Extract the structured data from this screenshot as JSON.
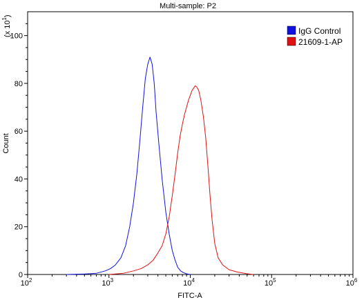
{
  "chart_data": {
    "type": "line",
    "title": "Multi-sample: P2",
    "xlabel": "FITC-A",
    "ylabel": "Count",
    "y_multiplier_label": "(x 10",
    "y_multiplier_exponent": "1",
    "x_scale": "log",
    "xlim": [
      100,
      1000000
    ],
    "ylim": [
      0,
      110
    ],
    "x_ticks": [
      {
        "base": "10",
        "exp": "2",
        "value": 100
      },
      {
        "base": "10",
        "exp": "3",
        "value": 1000
      },
      {
        "base": "10",
        "exp": "4",
        "value": 10000
      },
      {
        "base": "10",
        "exp": "5",
        "value": 100000
      },
      {
        "base": "10",
        "exp": "6",
        "value": 1000000
      }
    ],
    "y_ticks": [
      {
        "label": "0",
        "value": 0
      },
      {
        "label": "20",
        "value": 20
      },
      {
        "label": "40",
        "value": 40
      },
      {
        "label": "60",
        "value": 60
      },
      {
        "label": "80",
        "value": 80
      },
      {
        "label": "100",
        "value": 100
      }
    ],
    "grid": false,
    "legend_position": "top-right",
    "series": [
      {
        "name": "IgG Control",
        "color": "#1010e0",
        "x": [
          300,
          500,
          700,
          900,
          1050,
          1200,
          1400,
          1600,
          1800,
          2000,
          2200,
          2400,
          2600,
          2800,
          3000,
          3200,
          3400,
          3600,
          3800,
          4100,
          4500,
          5000,
          5500,
          6000,
          6500,
          7000,
          7600,
          8200,
          9000,
          10000
        ],
        "y": [
          0,
          0.2,
          0.5,
          1.5,
          2.5,
          4,
          7,
          12,
          20,
          30,
          42,
          56,
          70,
          82,
          88,
          91,
          88,
          80,
          68,
          55,
          40,
          26,
          17,
          10,
          6,
          3,
          1.5,
          0.8,
          0.3,
          0
        ]
      },
      {
        "name": "21609-1-AP",
        "color": "#e01010",
        "x": [
          1000,
          1500,
          2000,
          2500,
          3000,
          3500,
          4000,
          4500,
          5000,
          5500,
          6000,
          6500,
          7000,
          7500,
          8000,
          8500,
          9000,
          9500,
          10000,
          10500,
          11000,
          11500,
          12000,
          12700,
          13500,
          14500,
          15500,
          16500,
          17500,
          18500,
          20000,
          22000,
          25000,
          30000,
          38000,
          50000,
          60000
        ],
        "y": [
          0,
          0.5,
          1.5,
          2.5,
          4,
          6,
          9,
          12,
          17,
          24,
          33,
          42,
          51,
          58,
          63,
          67,
          70,
          73,
          75,
          77,
          78,
          79,
          78.5,
          77,
          73,
          66,
          57,
          45,
          33,
          23,
          13,
          7,
          4,
          2,
          1,
          0.3,
          0
        ]
      }
    ]
  }
}
